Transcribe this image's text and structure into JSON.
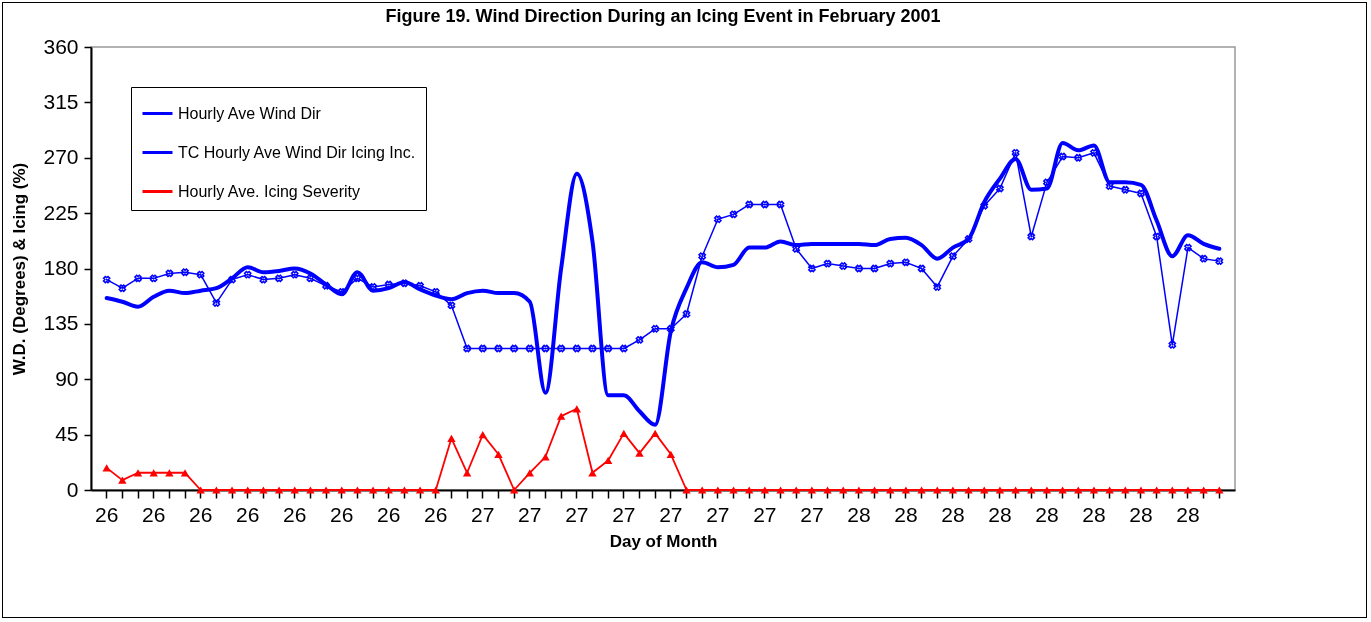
{
  "chart_data": {
    "type": "line",
    "title": "Figure 19. Wind Direction During an Icing Event in February 2001",
    "xlabel": "Day of Month",
    "ylabel": "W.D. (Degrees) & Icing (%)",
    "categories": [
      "26",
      null,
      null,
      "26",
      null,
      null,
      "26",
      null,
      null,
      "26",
      null,
      null,
      "26",
      null,
      null,
      "26",
      null,
      null,
      "26",
      null,
      null,
      "26",
      null,
      null,
      "27",
      null,
      null,
      "27",
      null,
      null,
      "27",
      null,
      null,
      "27",
      null,
      null,
      "27",
      null,
      null,
      "27",
      null,
      null,
      "27",
      null,
      null,
      "27",
      null,
      null,
      "28",
      null,
      null,
      "28",
      null,
      null,
      "28",
      null,
      null,
      "28",
      null,
      null,
      "28",
      null,
      null,
      "28",
      null,
      null,
      "28",
      null,
      null,
      "28",
      null,
      null
    ],
    "series": [
      {
        "name": "Hourly Ave Wind Dir",
        "color": "#0000ff",
        "marker": "none",
        "values": [
          156,
          153,
          149,
          157,
          162,
          160,
          162,
          164,
          172,
          181,
          177,
          178,
          180,
          176,
          167,
          159,
          177,
          162,
          164,
          169,
          163,
          158,
          155,
          160,
          162,
          160,
          160,
          153,
          79,
          180,
          257,
          202,
          77,
          77,
          64,
          53,
          129,
          164,
          185,
          181,
          183,
          197,
          197,
          202,
          199,
          200,
          200,
          200,
          200,
          199,
          204,
          205,
          199,
          188,
          197,
          204,
          234,
          253,
          269,
          244,
          245,
          282,
          276,
          280,
          250,
          250,
          248,
          219,
          190,
          207,
          200,
          196
        ]
      },
      {
        "name": "TC Hourly Ave Wind Dir Icing Inc.",
        "color": "#0000ff",
        "marker": "cross",
        "values": [
          171,
          164,
          172,
          172,
          176,
          177,
          175,
          152,
          171,
          175,
          171,
          172,
          175,
          172,
          166,
          161,
          172,
          165,
          167,
          168,
          166,
          161,
          150,
          115,
          115,
          115,
          115,
          115,
          115,
          115,
          115,
          115,
          115,
          115,
          122,
          131,
          131,
          143,
          190,
          220,
          224,
          232,
          232,
          232,
          196,
          180,
          184,
          182,
          180,
          180,
          184,
          185,
          180,
          165,
          190,
          204,
          231,
          245,
          274,
          206,
          250,
          271,
          270,
          274,
          247,
          244,
          241,
          206,
          118,
          197,
          188,
          186
        ]
      },
      {
        "name": "Hourly Ave. Icing Severity",
        "color": "#ff0000",
        "marker": "triangle",
        "values": [
          18,
          8,
          14,
          14,
          14,
          14,
          0,
          0,
          0,
          0,
          0,
          0,
          0,
          0,
          0,
          0,
          0,
          0,
          0,
          0,
          0,
          0,
          42,
          14,
          45,
          29,
          0,
          14,
          27,
          60,
          66,
          14,
          24,
          46,
          30,
          46,
          29,
          0,
          0,
          0,
          0,
          0,
          0,
          0,
          0,
          0,
          0,
          0,
          0,
          0,
          0,
          0,
          0,
          0,
          0,
          0,
          0,
          0,
          0,
          0,
          0,
          0,
          0,
          0,
          0,
          0,
          0,
          0,
          0,
          0,
          0,
          0
        ]
      }
    ],
    "ylim": [
      0,
      360
    ],
    "yticks": [
      0,
      45,
      90,
      135,
      180,
      225,
      270,
      315,
      360
    ],
    "grid": false,
    "legend": "top left",
    "line_style": "solid"
  }
}
